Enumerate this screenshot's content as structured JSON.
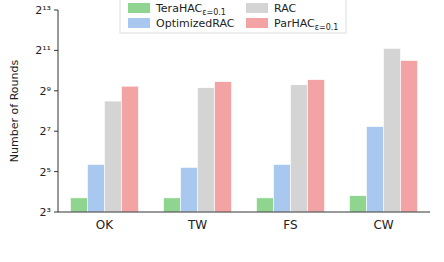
{
  "chart_data": {
    "type": "bar",
    "y_label": "Number of Rounds",
    "categories": [
      "OK",
      "TW",
      "FS",
      "CW"
    ],
    "series": [
      {
        "name": "TeraHACε=0.1",
        "color": "#8fd48f",
        "values": [
          13,
          13,
          13,
          14
        ]
      },
      {
        "name": "OptimizedRAC",
        "color": "#a9c8ef",
        "values": [
          41,
          37,
          41,
          150
        ]
      },
      {
        "name": "RAC",
        "color": "#d4d4d4",
        "values": [
          360,
          570,
          630,
          2200
        ]
      },
      {
        "name": "ParHACε=0.1",
        "color": "#f3a3a3",
        "values": [
          600,
          700,
          750,
          1450
        ]
      }
    ],
    "log": "y",
    "ylim": [
      8,
      8192
    ],
    "yticks": [
      {
        "value": 8,
        "label": "2³"
      },
      {
        "value": 32,
        "label": "2⁵"
      },
      {
        "value": 128,
        "label": "2⁷"
      },
      {
        "value": 512,
        "label": "2⁹"
      },
      {
        "value": 2048,
        "label": "2¹¹"
      },
      {
        "value": 8192,
        "label": "2¹³"
      }
    ],
    "legend": "top",
    "grid": false
  }
}
